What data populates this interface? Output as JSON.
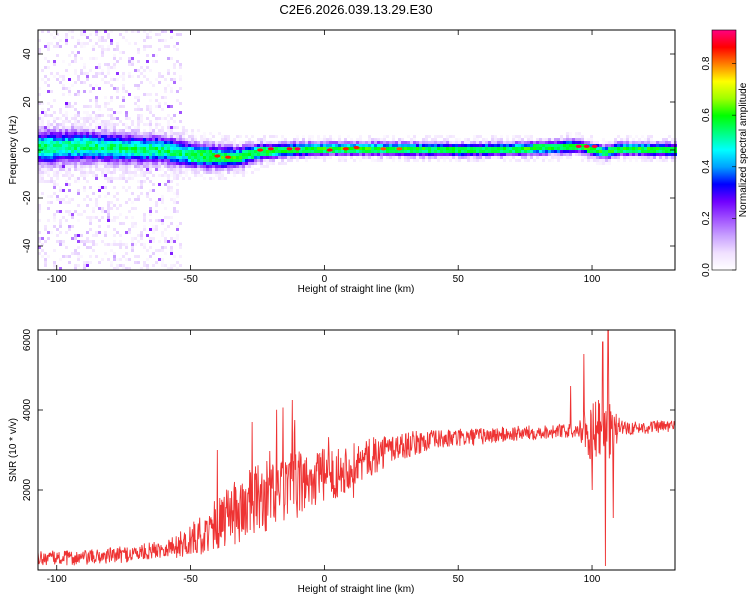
{
  "figure_title": "C2E6.2026.039.13.29.E30",
  "chart_data": [
    {
      "type": "heatmap",
      "title": "",
      "xlabel": "Height of straight line (km)",
      "ylabel": "Frequency (Hz)",
      "xlim": [
        -107,
        131
      ],
      "ylim": [
        -50,
        50
      ],
      "xticks": [
        -100,
        -50,
        0,
        50,
        100
      ],
      "yticks": [
        -40,
        -20,
        0,
        20,
        40
      ],
      "colorbar": {
        "label": "Normalized spectral amplitude",
        "range": [
          0.0,
          0.93
        ],
        "ticks": [
          0.0,
          0.2,
          0.4,
          0.6,
          0.8
        ],
        "colormap": [
          "#ffffff",
          "#f0e0ff",
          "#c8a0ff",
          "#a050ff",
          "#7000ff",
          "#0000ff",
          "#00a0ff",
          "#00ffff",
          "#00ff80",
          "#00ff00",
          "#a0ff00",
          "#ffff00",
          "#ff8000",
          "#ff0000",
          "#ff0080"
        ]
      },
      "band_center_hz": [
        {
          "x": -105,
          "f": 1.0
        },
        {
          "x": -90,
          "f": 1.5
        },
        {
          "x": -75,
          "f": 0.5
        },
        {
          "x": -60,
          "f": 0.0
        },
        {
          "x": -50,
          "f": -2.0
        },
        {
          "x": -40,
          "f": -3.0
        },
        {
          "x": -32,
          "f": -3.0
        },
        {
          "x": -25,
          "f": -1.0
        },
        {
          "x": -15,
          "f": 0.0
        },
        {
          "x": 0,
          "f": 0.5
        },
        {
          "x": 25,
          "f": 0.5
        },
        {
          "x": 50,
          "f": 0.0
        },
        {
          "x": 75,
          "f": 0.5
        },
        {
          "x": 95,
          "f": 1.5
        },
        {
          "x": 105,
          "f": -1.0
        },
        {
          "x": 110,
          "f": 0.5
        },
        {
          "x": 131,
          "f": 0.0
        }
      ],
      "band_halfwidth_hz": [
        {
          "x": -105,
          "w": 9
        },
        {
          "x": -55,
          "w": 7
        },
        {
          "x": -35,
          "w": 6
        },
        {
          "x": -20,
          "w": 4
        },
        {
          "x": 0,
          "w": 3.5
        },
        {
          "x": 131,
          "w": 3.5
        }
      ],
      "scatter_region_x": [
        -107,
        -53
      ],
      "peak_points": [
        {
          "x": -40,
          "f": -2.5,
          "a": 0.85
        },
        {
          "x": -36,
          "f": -3.0,
          "a": 0.85
        },
        {
          "x": -24,
          "f": 0.0,
          "a": 0.85
        },
        {
          "x": -20,
          "f": 0.5,
          "a": 0.88
        },
        {
          "x": -13,
          "f": 0.5,
          "a": 0.88
        },
        {
          "x": -10,
          "f": 0.5,
          "a": 0.9
        },
        {
          "x": 2,
          "f": 0.0,
          "a": 0.88
        },
        {
          "x": 8,
          "f": 0.5,
          "a": 0.85
        },
        {
          "x": 12,
          "f": 1.0,
          "a": 0.85
        },
        {
          "x": 22,
          "f": 0.5,
          "a": 0.82
        },
        {
          "x": 28,
          "f": 0.5,
          "a": 0.82
        },
        {
          "x": 95,
          "f": 1.5,
          "a": 0.9
        },
        {
          "x": 98,
          "f": 1.5,
          "a": 0.9
        },
        {
          "x": 101,
          "f": 1.5,
          "a": 0.9
        }
      ]
    },
    {
      "type": "line",
      "title": "",
      "xlabel": "Height of straight line (km)",
      "ylabel": "SNR (10 * v/v)",
      "xlim": [
        -107,
        131
      ],
      "ylim": [
        0,
        6000
      ],
      "xticks": [
        -100,
        -50,
        0,
        50,
        100
      ],
      "yticks": [
        2000,
        4000,
        6000
      ],
      "color": "#ee3333",
      "baseline": [
        {
          "x": -107,
          "y": 300
        },
        {
          "x": -90,
          "y": 300
        },
        {
          "x": -70,
          "y": 420
        },
        {
          "x": -55,
          "y": 600
        },
        {
          "x": -45,
          "y": 900
        },
        {
          "x": -35,
          "y": 1350
        },
        {
          "x": -25,
          "y": 1750
        },
        {
          "x": -15,
          "y": 2000
        },
        {
          "x": -5,
          "y": 2250
        },
        {
          "x": 5,
          "y": 2450
        },
        {
          "x": 15,
          "y": 2750
        },
        {
          "x": 25,
          "y": 3050
        },
        {
          "x": 40,
          "y": 3250
        },
        {
          "x": 60,
          "y": 3350
        },
        {
          "x": 80,
          "y": 3450
        },
        {
          "x": 100,
          "y": 3500
        },
        {
          "x": 131,
          "y": 3600
        }
      ],
      "noise_amplitude": [
        {
          "x": -107,
          "a": 180
        },
        {
          "x": -60,
          "a": 220
        },
        {
          "x": -45,
          "a": 500
        },
        {
          "x": -30,
          "a": 900
        },
        {
          "x": -15,
          "a": 900
        },
        {
          "x": 0,
          "a": 700
        },
        {
          "x": 20,
          "a": 450
        },
        {
          "x": 40,
          "a": 250
        },
        {
          "x": 80,
          "a": 180
        },
        {
          "x": 131,
          "a": 160
        }
      ],
      "spikes": [
        {
          "x": -40,
          "y": 3000
        },
        {
          "x": -27,
          "y": 3700
        },
        {
          "x": -12,
          "y": 4250
        },
        {
          "x": 92,
          "y": 4600
        },
        {
          "x": 97,
          "y": 5400
        },
        {
          "x": 104,
          "y": 5700
        },
        {
          "x": 106,
          "y": 6000
        },
        {
          "x": 105,
          "y": 100
        },
        {
          "x": 108,
          "y": 1300
        },
        {
          "x": 100,
          "y": 2000
        }
      ]
    }
  ]
}
